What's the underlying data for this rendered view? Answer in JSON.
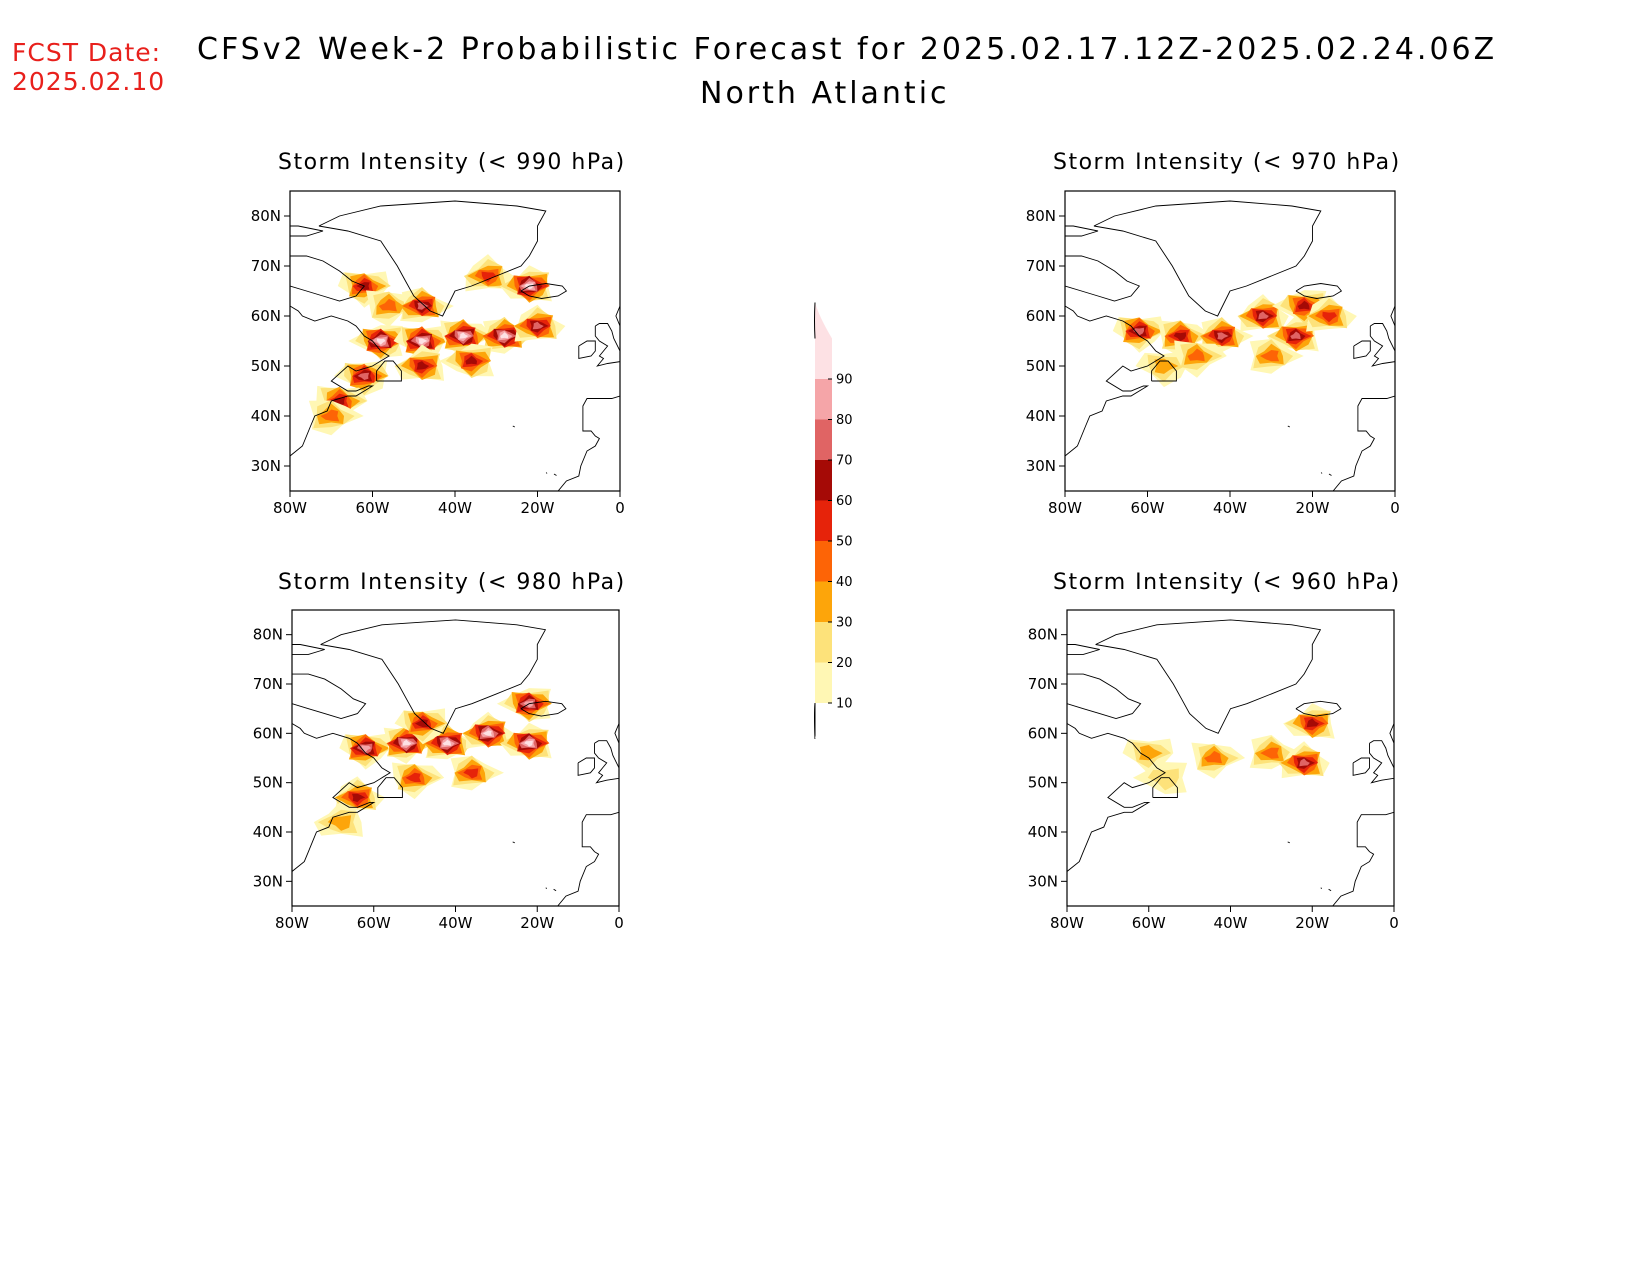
{
  "forecast_date": {
    "label": "FCST Date:",
    "value": "2025.02.10"
  },
  "title": {
    "line1": "CFSv2 Week-2 Probabilistic Forecast for 2025.02.17.12Z-2025.02.24.06Z",
    "line2": "North Atlantic"
  },
  "panels": [
    {
      "id": "p990",
      "title": "Storm Intensity (< 990 hPa)"
    },
    {
      "id": "p970",
      "title": "Storm Intensity (< 970 hPa)"
    },
    {
      "id": "p980",
      "title": "Storm Intensity (< 980 hPa)"
    },
    {
      "id": "p960",
      "title": "Storm Intensity (< 960 hPa)"
    }
  ],
  "axes": {
    "lat_labels": [
      "80N",
      "70N",
      "60N",
      "50N",
      "40N",
      "30N"
    ],
    "lon_labels": [
      "80W",
      "60W",
      "40W",
      "20W",
      "0"
    ],
    "lat_values": [
      80,
      70,
      60,
      50,
      40,
      30
    ],
    "lon_values": [
      -80,
      -60,
      -40,
      -20,
      0
    ],
    "lat_range": [
      25,
      85
    ],
    "lon_range": [
      -80,
      0
    ]
  },
  "colorbar": {
    "labels": [
      "10",
      "20",
      "30",
      "40",
      "50",
      "60",
      "70",
      "80",
      "90"
    ],
    "levels": [
      10,
      20,
      30,
      40,
      50,
      60,
      70,
      80,
      90
    ],
    "colors": [
      "#fff7b4",
      "#fde27a",
      "#fda50a",
      "#fd6406",
      "#e6230a",
      "#a50a06",
      "#e06464",
      "#f5a5a8",
      "#fde1e4"
    ]
  },
  "probability_blobs": {
    "p990": [
      {
        "lon": -62,
        "lat": 66,
        "level": 5
      },
      {
        "lon": -56,
        "lat": 62,
        "level": 3
      },
      {
        "lon": -48,
        "lat": 62,
        "level": 6
      },
      {
        "lon": -32,
        "lat": 68,
        "level": 4
      },
      {
        "lon": -22,
        "lat": 66,
        "level": 8
      },
      {
        "lon": -58,
        "lat": 55,
        "level": 8
      },
      {
        "lon": -48,
        "lat": 55,
        "level": 8
      },
      {
        "lon": -38,
        "lat": 56,
        "level": 8
      },
      {
        "lon": -28,
        "lat": 56,
        "level": 8
      },
      {
        "lon": -20,
        "lat": 58,
        "level": 6
      },
      {
        "lon": -48,
        "lat": 50,
        "level": 5
      },
      {
        "lon": -36,
        "lat": 51,
        "level": 5
      },
      {
        "lon": -62,
        "lat": 48,
        "level": 6
      },
      {
        "lon": -68,
        "lat": 43,
        "level": 5
      },
      {
        "lon": -70,
        "lat": 40,
        "level": 3
      }
    ],
    "p970": [
      {
        "lon": -62,
        "lat": 57,
        "level": 6
      },
      {
        "lon": -52,
        "lat": 56,
        "level": 5
      },
      {
        "lon": -42,
        "lat": 56,
        "level": 6
      },
      {
        "lon": -32,
        "lat": 60,
        "level": 6
      },
      {
        "lon": -24,
        "lat": 56,
        "level": 6
      },
      {
        "lon": -22,
        "lat": 62,
        "level": 5
      },
      {
        "lon": -56,
        "lat": 50,
        "level": 2
      },
      {
        "lon": -48,
        "lat": 52,
        "level": 3
      },
      {
        "lon": -30,
        "lat": 52,
        "level": 3
      },
      {
        "lon": -16,
        "lat": 60,
        "level": 4
      }
    ],
    "p980": [
      {
        "lon": -62,
        "lat": 57,
        "level": 7
      },
      {
        "lon": -52,
        "lat": 58,
        "level": 8
      },
      {
        "lon": -42,
        "lat": 58,
        "level": 8
      },
      {
        "lon": -32,
        "lat": 60,
        "level": 8
      },
      {
        "lon": -22,
        "lat": 58,
        "level": 8
      },
      {
        "lon": -22,
        "lat": 66,
        "level": 7
      },
      {
        "lon": -48,
        "lat": 62,
        "level": 5
      },
      {
        "lon": -50,
        "lat": 51,
        "level": 4
      },
      {
        "lon": -36,
        "lat": 52,
        "level": 4
      },
      {
        "lon": -64,
        "lat": 47,
        "level": 5
      },
      {
        "lon": -68,
        "lat": 42,
        "level": 2
      }
    ],
    "p960": [
      {
        "lon": -60,
        "lat": 56,
        "level": 2
      },
      {
        "lon": -44,
        "lat": 55,
        "level": 3
      },
      {
        "lon": -30,
        "lat": 56,
        "level": 3
      },
      {
        "lon": -22,
        "lat": 54,
        "level": 6
      },
      {
        "lon": -20,
        "lat": 62,
        "level": 5
      },
      {
        "lon": -56,
        "lat": 51,
        "level": 1
      }
    ]
  }
}
